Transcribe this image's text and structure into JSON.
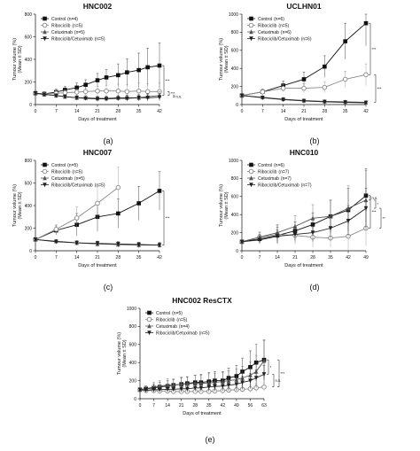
{
  "figure": {
    "panel_labels": [
      "(a)",
      "(b)",
      "(c)",
      "(d)",
      "(e)"
    ]
  },
  "chart_data": [
    {
      "type": "line",
      "title": "HNC002",
      "xlabel": "Days of treatment",
      "ylabel": "Tumour volume (%)",
      "ylabel2": "(Mean ± SD)",
      "xlim": [
        0,
        42
      ],
      "ylim": [
        0,
        800
      ],
      "xticks": [
        0,
        7,
        14,
        21,
        28,
        35,
        42
      ],
      "yticks": [
        0,
        200,
        400,
        600,
        800
      ],
      "legend": "top-left",
      "series": [
        {
          "name": "Control",
          "n": "(n=4)",
          "marker": "square-filled",
          "dashed": false,
          "x": [
            0,
            3,
            7,
            10,
            14,
            17,
            21,
            24,
            28,
            31,
            35,
            38,
            42
          ],
          "y": [
            100,
            95,
            110,
            130,
            150,
            175,
            215,
            240,
            260,
            285,
            305,
            330,
            345
          ],
          "err": [
            20,
            20,
            25,
            30,
            40,
            45,
            60,
            70,
            100,
            120,
            150,
            170,
            200
          ]
        },
        {
          "name": "Ribociclib",
          "n": "(n=5)",
          "marker": "circle-open",
          "dashed": false,
          "x": [
            0,
            3,
            7,
            10,
            14,
            17,
            21,
            24,
            28,
            31,
            35,
            38,
            42
          ],
          "y": [
            100,
            95,
            100,
            105,
            110,
            115,
            120,
            120,
            120,
            115,
            120,
            115,
            115
          ],
          "err": [
            15,
            15,
            20,
            25,
            30,
            30,
            40,
            50,
            60,
            60,
            70,
            70,
            80
          ]
        },
        {
          "name": "Cetuximab",
          "n": "(n=5)",
          "marker": "triangle-filled",
          "dashed": false,
          "x": [
            0,
            3,
            7,
            10,
            14,
            17,
            21,
            24,
            28,
            31,
            35,
            38,
            42
          ],
          "y": [
            100,
            90,
            80,
            70,
            60,
            60,
            55,
            55,
            60,
            60,
            60,
            70,
            80
          ],
          "err": [
            10,
            10,
            15,
            15,
            20,
            20,
            20,
            20,
            25,
            25,
            30,
            30,
            35
          ]
        },
        {
          "name": "Ribociclib/Cetuximab",
          "n": "(n=5)",
          "marker": "triangle-down-filled",
          "dashed": false,
          "x": [
            0,
            3,
            7,
            10,
            14,
            17,
            21,
            24,
            28,
            31,
            35,
            38,
            42
          ],
          "y": [
            100,
            90,
            80,
            70,
            60,
            55,
            50,
            50,
            55,
            55,
            60,
            60,
            65
          ],
          "err": [
            10,
            10,
            15,
            15,
            15,
            15,
            20,
            20,
            20,
            25,
            25,
            30,
            30
          ]
        }
      ],
      "significance": [
        {
          "label": "***",
          "from": "Control",
          "to": "Cetuximab"
        },
        {
          "label": "***",
          "from": "Ribociclib",
          "to": "Cetuximab"
        },
        {
          "label": "n.s.",
          "from": "Cetuximab",
          "to": "Ribociclib/Cetuximab"
        }
      ]
    },
    {
      "type": "line",
      "title": "UCLHN01",
      "xlabel": "Days of treatment",
      "ylabel": "Tumour volume (%)",
      "ylabel2": "(Mean ± SD)",
      "xlim": [
        0,
        42
      ],
      "ylim": [
        0,
        1000
      ],
      "xticks": [
        0,
        7,
        14,
        21,
        28,
        35,
        42
      ],
      "yticks": [
        0,
        200,
        400,
        600,
        800,
        1000
      ],
      "legend": "top-left",
      "series": [
        {
          "name": "Control",
          "n": "(n=6)",
          "marker": "square-filled",
          "dashed": false,
          "x": [
            0,
            7,
            14,
            21,
            28,
            35,
            42
          ],
          "y": [
            100,
            140,
            210,
            280,
            420,
            700,
            900
          ],
          "err": [
            15,
            30,
            50,
            80,
            120,
            200,
            250
          ]
        },
        {
          "name": "Ribociclib",
          "n": "(n=5)",
          "marker": "circle-open",
          "dashed": false,
          "x": [
            0,
            7,
            14,
            21,
            28,
            35,
            42
          ],
          "y": [
            100,
            140,
            180,
            180,
            190,
            280,
            330
          ],
          "err": [
            15,
            25,
            40,
            50,
            60,
            90,
            120
          ]
        },
        {
          "name": "Cetuximab",
          "n": "(n=6)",
          "marker": "triangle-filled",
          "dashed": false,
          "x": [
            0,
            7,
            14,
            21,
            28,
            35,
            42
          ],
          "y": [
            100,
            80,
            60,
            45,
            35,
            30,
            25
          ],
          "err": [
            10,
            10,
            10,
            10,
            8,
            8,
            8
          ]
        },
        {
          "name": "Ribociclib/Cetuximab",
          "n": "(n=6)",
          "marker": "triangle-down-filled",
          "dashed": false,
          "x": [
            0,
            7,
            14,
            21,
            28,
            35,
            42
          ],
          "y": [
            100,
            75,
            55,
            40,
            30,
            25,
            20
          ],
          "err": [
            10,
            10,
            10,
            8,
            8,
            6,
            6
          ]
        }
      ],
      "significance": [
        {
          "label": "***",
          "from": "Control",
          "to": "Ribociclib"
        },
        {
          "label": "***",
          "from": "Ribociclib",
          "to": "Cetuximab"
        }
      ]
    },
    {
      "type": "line",
      "title": "HNC007",
      "xlabel": "Days of treatment",
      "ylabel": "Tumour volume (%)",
      "ylabel2": "(Mean ± SD)",
      "xlim": [
        0,
        42
      ],
      "ylim": [
        0,
        800
      ],
      "xticks": [
        0,
        7,
        14,
        21,
        28,
        35,
        42
      ],
      "yticks": [
        0,
        200,
        400,
        600,
        800
      ],
      "legend": "top-left",
      "series": [
        {
          "name": "Control",
          "n": "(n=5)",
          "marker": "square-filled",
          "dashed": false,
          "x": [
            0,
            7,
            14,
            21,
            28,
            35,
            42
          ],
          "y": [
            100,
            180,
            230,
            300,
            330,
            420,
            530
          ],
          "err": [
            15,
            40,
            100,
            130,
            130,
            150,
            170
          ]
        },
        {
          "name": "Ribociclib",
          "n": "(n=5)",
          "marker": "circle-open",
          "dashed": false,
          "x": [
            0,
            7,
            14,
            21,
            28
          ],
          "y": [
            100,
            190,
            290,
            420,
            560
          ],
          "err": [
            15,
            40,
            100,
            150,
            180
          ]
        },
        {
          "name": "Cetuximab",
          "n": "(n=5)",
          "marker": "triangle-filled",
          "dashed": false,
          "x": [
            0,
            7,
            14,
            21,
            28,
            35,
            42
          ],
          "y": [
            100,
            85,
            70,
            60,
            55,
            50,
            50
          ],
          "err": [
            10,
            15,
            20,
            25,
            25,
            25,
            25
          ]
        },
        {
          "name": "Ribociclib/Cetuximab",
          "n": "(n=5)",
          "marker": "triangle-down-filled",
          "dashed": false,
          "x": [
            0,
            7,
            14,
            21,
            28,
            35,
            42
          ],
          "y": [
            100,
            80,
            70,
            65,
            60,
            55,
            50
          ],
          "err": [
            10,
            15,
            15,
            20,
            20,
            20,
            20
          ]
        }
      ],
      "significance": [
        {
          "label": "***",
          "from": "Control",
          "to": "Cetuximab"
        }
      ]
    },
    {
      "type": "line",
      "title": "HNC010",
      "xlabel": "Days of treatment",
      "ylabel": "Tumour volume (%)",
      "ylabel2": "(Mean ± SD)",
      "xlim": [
        0,
        49
      ],
      "ylim": [
        0,
        1000
      ],
      "xticks": [
        0,
        7,
        14,
        21,
        28,
        35,
        42,
        49
      ],
      "yticks": [
        0,
        200,
        400,
        600,
        800,
        1000
      ],
      "legend": "top-left",
      "series": [
        {
          "name": "Control",
          "n": "(n=6)",
          "marker": "square-filled",
          "dashed": false,
          "x": [
            0,
            7,
            14,
            21,
            28,
            35,
            42,
            49
          ],
          "y": [
            100,
            130,
            170,
            220,
            290,
            380,
            450,
            610
          ],
          "err": [
            20,
            50,
            90,
            100,
            130,
            180,
            240,
            300
          ]
        },
        {
          "name": "Ribociclib",
          "n": "(n=7)",
          "marker": "circle-open",
          "dashed": false,
          "x": [
            0,
            7,
            14,
            21,
            28,
            35,
            42,
            49
          ],
          "y": [
            100,
            150,
            180,
            170,
            150,
            140,
            160,
            250
          ],
          "err": [
            20,
            60,
            100,
            100,
            110,
            100,
            150,
            200
          ]
        },
        {
          "name": "Cetuximab",
          "n": "(n=7)",
          "marker": "triangle-filled",
          "dashed": false,
          "x": [
            0,
            7,
            14,
            21,
            28,
            35,
            42,
            49
          ],
          "y": [
            100,
            150,
            200,
            270,
            360,
            380,
            470,
            560
          ],
          "err": [
            20,
            50,
            90,
            120,
            150,
            180,
            250,
            330
          ]
        },
        {
          "name": "Ribociclib/Cetuximab",
          "n": "(n=7)",
          "marker": "triangle-down-filled",
          "dashed": false,
          "x": [
            0,
            7,
            14,
            21,
            28,
            35,
            42,
            49
          ],
          "y": [
            100,
            120,
            160,
            180,
            200,
            250,
            330,
            470
          ],
          "err": [
            20,
            40,
            70,
            80,
            100,
            130,
            170,
            220
          ]
        }
      ],
      "significance": [
        {
          "label": "n.s.",
          "from": "Control",
          "to": "Cetuximab"
        },
        {
          "label": "*",
          "from": "Cetuximab",
          "to": "Ribociclib/Cetuximab"
        },
        {
          "label": "**",
          "from": "Ribociclib/Cetuximab",
          "to": "Ribociclib"
        },
        {
          "label": "***",
          "from": "Control",
          "to": "Ribociclib"
        }
      ]
    },
    {
      "type": "line",
      "title": "HNC002 ResCTX",
      "xlabel": "Days of treatment",
      "ylabel": "Tumour volume (%)",
      "ylabel2": "(Mean ± SD)",
      "xlim": [
        0,
        63
      ],
      "ylim": [
        0,
        1000
      ],
      "xticks": [
        0,
        7,
        14,
        21,
        28,
        35,
        42,
        49,
        56,
        63
      ],
      "yticks": [
        0,
        200,
        400,
        600,
        800,
        1000
      ],
      "legend": "top-left",
      "series": [
        {
          "name": "Control",
          "n": "(n=5)",
          "marker": "square-filled",
          "dashed": false,
          "x": [
            0,
            3,
            7,
            10,
            14,
            17,
            21,
            24,
            28,
            31,
            35,
            38,
            42,
            45,
            49,
            52,
            56,
            59,
            63
          ],
          "y": [
            100,
            110,
            120,
            130,
            140,
            150,
            160,
            170,
            180,
            180,
            190,
            200,
            200,
            230,
            250,
            300,
            350,
            400,
            430
          ],
          "err": [
            20,
            30,
            40,
            50,
            60,
            60,
            70,
            70,
            80,
            90,
            100,
            100,
            100,
            110,
            120,
            150,
            180,
            200,
            220
          ]
        },
        {
          "name": "Ribociclib",
          "n": "(n=5)",
          "marker": "circle-open",
          "dashed": false,
          "x": [
            0,
            3,
            7,
            10,
            14,
            17,
            21,
            24,
            28,
            31,
            35,
            38,
            42,
            45,
            49,
            52,
            56,
            59,
            63
          ],
          "y": [
            100,
            90,
            90,
            85,
            85,
            80,
            80,
            80,
            80,
            80,
            80,
            85,
            90,
            95,
            100,
            105,
            110,
            120,
            130
          ],
          "err": [
            15,
            15,
            20,
            20,
            20,
            20,
            20,
            25,
            25,
            25,
            25,
            30,
            30,
            30,
            35,
            35,
            40,
            40,
            45
          ]
        },
        {
          "name": "Cetuximab",
          "n": "(n=4)",
          "marker": "triangle-filled",
          "dashed": false,
          "x": [
            0,
            3,
            7,
            10,
            14,
            17,
            21,
            24,
            28,
            31,
            35,
            38,
            42,
            45,
            49,
            52,
            56,
            59,
            63
          ],
          "y": [
            100,
            110,
            130,
            140,
            150,
            150,
            160,
            165,
            170,
            170,
            175,
            180,
            190,
            200,
            210,
            230,
            260,
            300,
            420
          ],
          "err": [
            20,
            30,
            50,
            60,
            70,
            70,
            80,
            80,
            90,
            90,
            100,
            100,
            100,
            110,
            120,
            130,
            150,
            180,
            220
          ]
        },
        {
          "name": "Ribociclib/Cetuximab",
          "n": "(n=5)",
          "marker": "triangle-down-filled",
          "dashed": false,
          "x": [
            0,
            3,
            7,
            10,
            14,
            17,
            21,
            24,
            28,
            31,
            35,
            38,
            42,
            45,
            49,
            52,
            56,
            59,
            63
          ],
          "y": [
            100,
            95,
            100,
            100,
            105,
            105,
            110,
            110,
            120,
            120,
            130,
            135,
            140,
            150,
            160,
            180,
            200,
            230,
            270
          ],
          "err": [
            15,
            20,
            25,
            25,
            30,
            30,
            35,
            35,
            40,
            40,
            45,
            50,
            55,
            60,
            65,
            70,
            80,
            90,
            100
          ]
        }
      ],
      "significance": [
        {
          "label": "*",
          "from": "Control",
          "to": "Ribociclib/Cetuximab"
        },
        {
          "label": "n.s.",
          "from": "Ribociclib/Cetuximab",
          "to": "Ribociclib"
        },
        {
          "label": "***",
          "from": "Control",
          "to": "Ribociclib"
        }
      ]
    }
  ]
}
